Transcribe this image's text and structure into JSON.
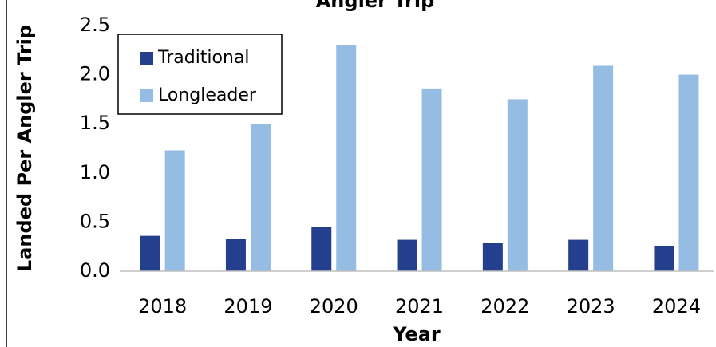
{
  "chart_data": {
    "type": "bar",
    "title": "Angler Trip",
    "y_label": "Landed Per Angler Trip",
    "x_label": "Year",
    "categories": [
      "2018",
      "2019",
      "2020",
      "2021",
      "2022",
      "2023",
      "2024"
    ],
    "series": [
      {
        "name": "Traditional",
        "color": "#253f8f",
        "values": [
          0.36,
          0.33,
          0.45,
          0.32,
          0.29,
          0.32,
          0.26
        ]
      },
      {
        "name": "Longleader",
        "color": "#95bde3",
        "values": [
          1.23,
          1.5,
          2.3,
          1.86,
          1.75,
          2.09,
          2.0
        ]
      }
    ],
    "ylim": [
      0,
      2.5
    ],
    "yticks": [
      {
        "value": 0,
        "label": "0.0"
      },
      0.5,
      {
        "value": 1,
        "label": "1.0"
      },
      1.5,
      {
        "value": 2,
        "label": "2.0"
      },
      2.5
    ],
    "grid": false,
    "legend": "upper left"
  }
}
